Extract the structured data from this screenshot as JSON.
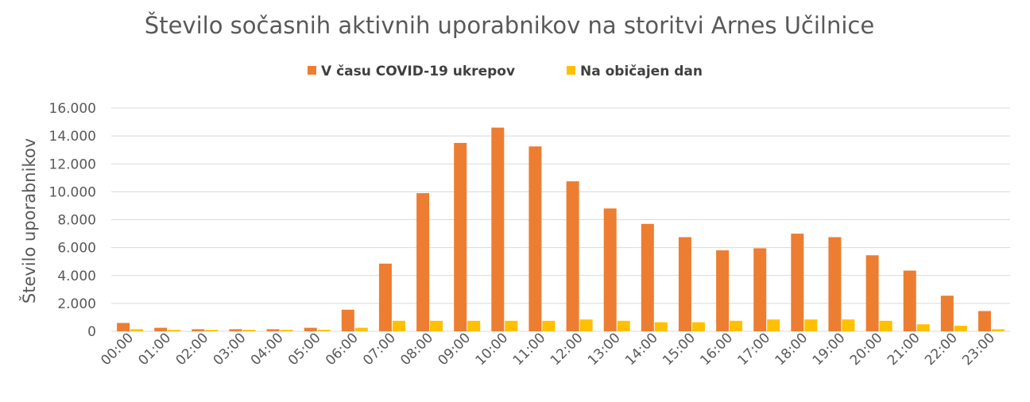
{
  "chart_data": {
    "type": "bar",
    "title": "Število sočasnih aktivnih uporabnikov na storitvi Arnes Učilnice",
    "xlabel": "",
    "ylabel": "Število uporabnikov",
    "ylim": [
      0,
      16000
    ],
    "yticks": [
      {
        "value": 0,
        "label": "0"
      },
      {
        "value": 2000,
        "label": "2.000"
      },
      {
        "value": 4000,
        "label": "4.000"
      },
      {
        "value": 6000,
        "label": "6.000"
      },
      {
        "value": 8000,
        "label": "8.000"
      },
      {
        "value": 10000,
        "label": "10.000"
      },
      {
        "value": 12000,
        "label": "12.000"
      },
      {
        "value": 14000,
        "label": "14.000"
      },
      {
        "value": 16000,
        "label": "16.000"
      }
    ],
    "grid": true,
    "legend_position": "top",
    "categories": [
      "00:00",
      "01:00",
      "02:00",
      "03:00",
      "04:00",
      "05:00",
      "06:00",
      "07:00",
      "08:00",
      "09:00",
      "10:00",
      "11:00",
      "12:00",
      "13:00",
      "14:00",
      "15:00",
      "16:00",
      "17:00",
      "18:00",
      "19:00",
      "20:00",
      "21:00",
      "22:00",
      "23:00"
    ],
    "series": [
      {
        "name": "V času COVID-19 ukrepov",
        "color": "#ed7d31",
        "values": [
          600,
          250,
          150,
          150,
          150,
          250,
          1550,
          4850,
          9900,
          13500,
          14600,
          13250,
          10750,
          8800,
          7700,
          6750,
          5800,
          5950,
          7000,
          6750,
          5450,
          4350,
          2550,
          1450
        ]
      },
      {
        "name": "Na običajen dan",
        "color": "#ffc000",
        "values": [
          150,
          100,
          100,
          100,
          100,
          100,
          250,
          750,
          750,
          750,
          750,
          750,
          850,
          750,
          650,
          650,
          750,
          850,
          850,
          850,
          750,
          500,
          400,
          150
        ]
      }
    ]
  }
}
